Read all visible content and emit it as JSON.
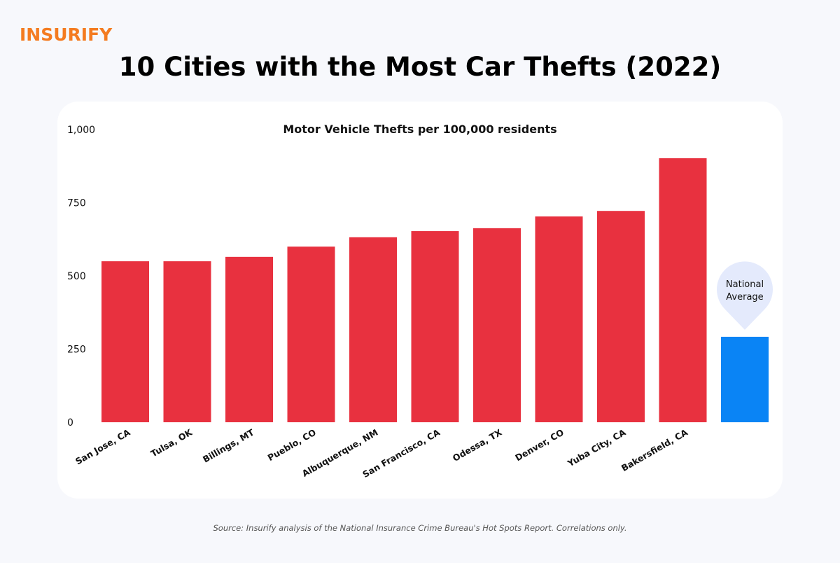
{
  "brand": {
    "logo_text": "INSURIFY",
    "color": "#f47b20"
  },
  "title": "10 Cities with the Most Car Thefts (2022)",
  "source": "Source: Insurify analysis of the National Insurance Crime Bureau's Hot Spots Report. Correlations only.",
  "chart_data": {
    "type": "bar",
    "title": "Motor Vehicle Thefts per 100,000 residents",
    "xlabel": "",
    "ylabel": "",
    "ylim": [
      0,
      1000
    ],
    "yticks": [
      0,
      250,
      500,
      750,
      1000
    ],
    "ytick_labels": [
      "0",
      "250",
      "500",
      "750",
      "1,000"
    ],
    "grid": false,
    "categories": [
      "San Jose, CA",
      "Tulsa, OK",
      "Billings, MT",
      "Pueblo, CO",
      "Albuquerque, NM",
      "San Francisco, CA",
      "Odessa, TX",
      "Denver, CO",
      "Yuba City, CA",
      "Bakersfield, CA",
      ""
    ],
    "values": [
      550,
      550,
      565,
      600,
      632,
      653,
      663,
      703,
      722,
      902,
      292
    ],
    "bar_colors": [
      "#e8313f",
      "#e8313f",
      "#e8313f",
      "#e8313f",
      "#e8313f",
      "#e8313f",
      "#e8313f",
      "#e8313f",
      "#e8313f",
      "#e8313f",
      "#0a84f5"
    ],
    "annotation": {
      "text_line1": "National",
      "text_line2": "Average",
      "bubble_color": "#e4eafc"
    }
  }
}
